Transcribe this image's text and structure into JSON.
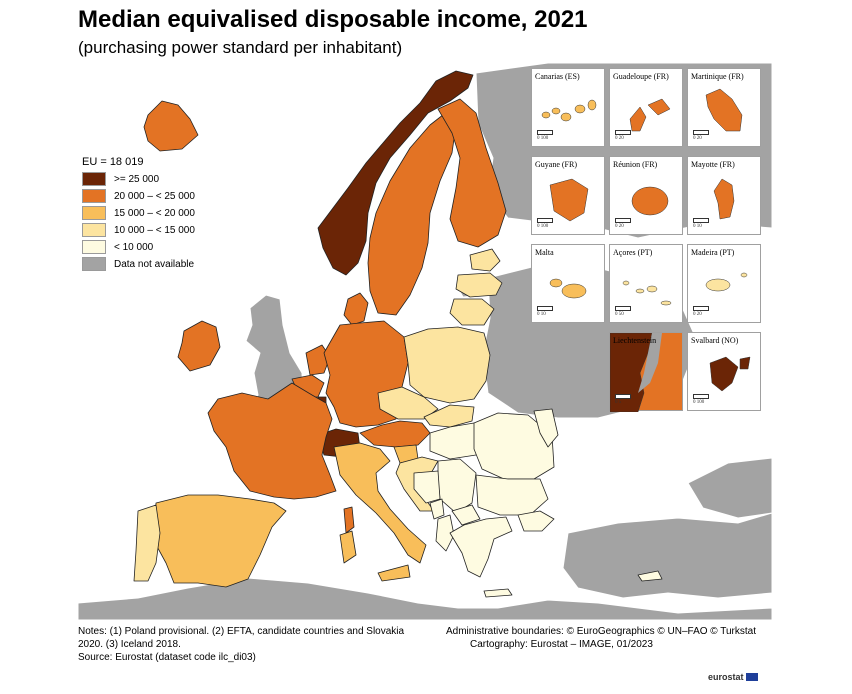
{
  "title": "Median equivalised disposable income, 2021",
  "subtitle": "(purchasing power standard per inhabitant)",
  "legend": {
    "header": "EU = 18 019",
    "items": [
      {
        "label": ">= 25 000",
        "color": "#6b2506"
      },
      {
        "label": "20 000 – < 25 000",
        "color": "#e37324"
      },
      {
        "label": "15 000 – < 20 000",
        "color": "#f8be5a"
      },
      {
        "label": "10 000 – < 15 000",
        "color": "#fce4a0"
      },
      {
        "label": "< 10 000",
        "color": "#fefbe1"
      },
      {
        "label": "Data not available",
        "color": "#a3a3a3"
      }
    ]
  },
  "insets": [
    {
      "label": "Canarias (ES)",
      "scale": "0     100",
      "color": "#f8be5a"
    },
    {
      "label": "Guadeloupe (FR)",
      "scale": "0     20",
      "color": "#e37324"
    },
    {
      "label": "Martinique (FR)",
      "scale": "0     20",
      "color": "#e37324"
    },
    {
      "label": "Guyane (FR)",
      "scale": "0     100",
      "color": "#e37324"
    },
    {
      "label": "Réunion (FR)",
      "scale": "0     20",
      "color": "#e37324"
    },
    {
      "label": "Mayotte (FR)",
      "scale": "0     10",
      "color": "#e37324"
    },
    {
      "label": "Malta",
      "scale": "0     10",
      "color": "#f8be5a"
    },
    {
      "label": "Açores (PT)",
      "scale": "0     50",
      "color": "#fce4a0"
    },
    {
      "label": "Madeira (PT)",
      "scale": "0     20",
      "color": "#fce4a0"
    },
    {
      "label": "Liechtenstein",
      "scale": "0     5",
      "color": "#6b2506"
    },
    {
      "label": "Svalbard (NO)",
      "scale": "0     100",
      "color": "#6b2506"
    }
  ],
  "notes": "Notes: (1) Poland provisional. (2) EFTA, candidate countries and Slovakia 2020. (3) Iceland 2018.",
  "source": "Source: Eurostat (dataset code ilc_di03)",
  "credits": {
    "boundaries": "Administrative boundaries: © EuroGeographics © UN–FAO © Turkstat",
    "cartography": "Cartography: Eurostat – IMAGE, 01/2023"
  },
  "logo": "eurostat",
  "colors": {
    "sea": "#ffffff",
    "no_data": "#a3a3a3",
    "border": "#222222"
  }
}
